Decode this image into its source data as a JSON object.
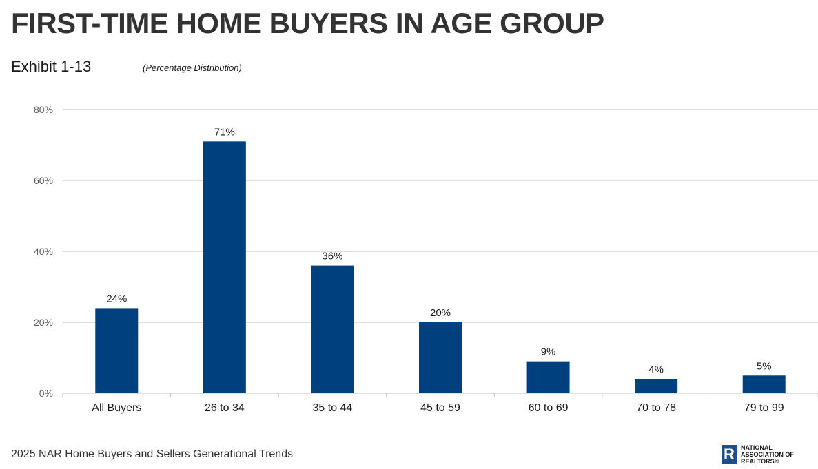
{
  "header": {
    "title": "FIRST-TIME HOME BUYERS IN AGE GROUP",
    "exhibit": "Exhibit 1-13",
    "subtitle": "(Percentage Distribution)"
  },
  "footer": {
    "source": "2025 NAR Home Buyers and Sellers Generational Trends",
    "logo_line1": "NATIONAL",
    "logo_line2": "ASSOCIATION OF",
    "logo_line3": "REALTORS®",
    "logo_mark": "R"
  },
  "colors": {
    "bar": "#00407f",
    "grid": "#bfbfbf",
    "axis_text": "#595959"
  },
  "chart_data": {
    "type": "bar",
    "title": "FIRST-TIME HOME BUYERS IN AGE GROUP",
    "categories": [
      "All Buyers",
      "26 to 34",
      "35 to 44",
      "45 to 59",
      "60 to 69",
      "70 to 78",
      "79 to 99"
    ],
    "values": [
      24,
      71,
      36,
      20,
      9,
      4,
      5
    ],
    "data_labels": [
      "24%",
      "71%",
      "36%",
      "20%",
      "9%",
      "4%",
      "5%"
    ],
    "ylim": [
      0,
      80
    ],
    "yticks": [
      0,
      20,
      40,
      60,
      80
    ],
    "ytick_labels": [
      "0%",
      "20%",
      "40%",
      "60%",
      "80%"
    ],
    "xlabel": "",
    "ylabel": "",
    "grid": true,
    "legend": false
  }
}
